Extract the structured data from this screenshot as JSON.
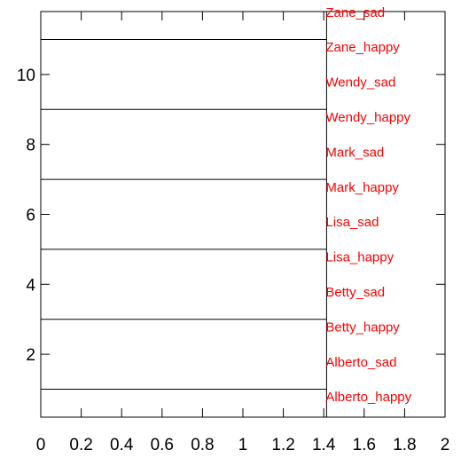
{
  "chart_data": {
    "type": "dendrogram",
    "title": "",
    "xlabel": "",
    "ylabel": "",
    "xlim": [
      0,
      2
    ],
    "ylim": [
      0.2,
      11.8
    ],
    "x_ticks": [
      0,
      0.2,
      0.4,
      0.6,
      0.8,
      1,
      1.2,
      1.4,
      1.6,
      1.8,
      2
    ],
    "x_tick_labels": [
      "0",
      "0.2",
      "0.4",
      "0.6",
      "0.8",
      "1",
      "1.2",
      "1.4",
      "1.6",
      "1.8",
      "2"
    ],
    "y_ticks": [
      2,
      4,
      6,
      8,
      10
    ],
    "y_tick_labels": [
      "2",
      "4",
      "6",
      "8",
      "10"
    ],
    "leaf_color": "#ff0000",
    "leaves": [
      {
        "label": "Alberto_happy",
        "y": 0
      },
      {
        "label": "Alberto_sad",
        "y": 1
      },
      {
        "label": "Betty_happy",
        "y": 2
      },
      {
        "label": "Betty_sad",
        "y": 3
      },
      {
        "label": "Lisa_happy",
        "y": 4
      },
      {
        "label": "Lisa_sad",
        "y": 5
      },
      {
        "label": "Mark_happy",
        "y": 6
      },
      {
        "label": "Mark_sad",
        "y": 7
      },
      {
        "label": "Wendy_happy",
        "y": 8
      },
      {
        "label": "Wendy_sad",
        "y": 9
      },
      {
        "label": "Zane_happy",
        "y": 10
      },
      {
        "label": "Zane_sad",
        "y": 11
      }
    ],
    "merges": [
      {
        "y": 1,
        "height": 1.414,
        "y_span": [
          0,
          2
        ]
      },
      {
        "y": 3,
        "height": 1.414,
        "y_span": [
          2,
          4
        ]
      },
      {
        "y": 5,
        "height": 1.414,
        "y_span": [
          4,
          6
        ]
      },
      {
        "y": 7,
        "height": 1.414,
        "y_span": [
          6,
          8
        ]
      },
      {
        "y": 9,
        "height": 1.414,
        "y_span": [
          8,
          10
        ]
      },
      {
        "y": 11,
        "height": 1.414,
        "y_span": [
          10,
          12
        ]
      }
    ]
  }
}
